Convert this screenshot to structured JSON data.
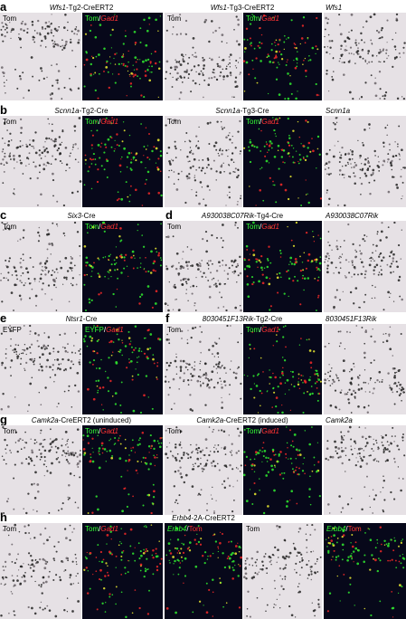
{
  "rows": [
    {
      "letters": [
        "a"
      ],
      "captions": [
        {
          "parts": [
            {
              "text": "Wfs1",
              "italic": true
            },
            {
              "text": "-Tg2-CreERT2"
            }
          ]
        },
        {
          "parts": [
            {
              "text": "Wfs1",
              "italic": true
            },
            {
              "text": "-Tg3-CreERT2"
            }
          ]
        },
        {
          "parts": [
            {
              "text": "Wfs1",
              "italic": true
            }
          ]
        }
      ],
      "panels": [
        {
          "kind": "ish",
          "label": [
            {
              "text": "Tom",
              "color": "#000"
            }
          ]
        },
        {
          "kind": "fluor",
          "label": [
            {
              "text": "Tom",
              "color": "#3f3"
            },
            {
              "text": "/",
              "color": "#fff"
            },
            {
              "text": "Gad1",
              "color": "#f33",
              "italic": true
            }
          ]
        },
        {
          "kind": "ish",
          "label": [
            {
              "text": "Tom",
              "color": "#000"
            }
          ]
        },
        {
          "kind": "fluor",
          "label": [
            {
              "text": "Tom",
              "color": "#3f3"
            },
            {
              "text": "/",
              "color": "#fff"
            },
            {
              "text": "Gad1",
              "color": "#f33",
              "italic": true
            }
          ]
        },
        {
          "kind": "ish",
          "label": []
        }
      ]
    },
    {
      "letters": [
        "b"
      ],
      "captions": [
        {
          "parts": [
            {
              "text": "Scnn1a",
              "italic": true
            },
            {
              "text": "-Tg2-Cre"
            }
          ]
        },
        {
          "parts": [
            {
              "text": "Scnn1a",
              "italic": true
            },
            {
              "text": "-Tg3-Cre"
            }
          ]
        },
        {
          "parts": [
            {
              "text": "Scnn1a",
              "italic": true
            }
          ]
        }
      ],
      "panels": [
        {
          "kind": "ish",
          "label": [
            {
              "text": "Tom",
              "color": "#000"
            }
          ]
        },
        {
          "kind": "fluor",
          "label": [
            {
              "text": "Tom",
              "color": "#3f3"
            },
            {
              "text": "/",
              "color": "#fff"
            },
            {
              "text": "Gad1",
              "color": "#f33",
              "italic": true
            }
          ]
        },
        {
          "kind": "ish",
          "label": [
            {
              "text": "Tom",
              "color": "#000"
            }
          ]
        },
        {
          "kind": "fluor",
          "label": [
            {
              "text": "Tom",
              "color": "#3f3"
            },
            {
              "text": "/",
              "color": "#fff"
            },
            {
              "text": "Gad1",
              "color": "#f33",
              "italic": true
            }
          ]
        },
        {
          "kind": "ish",
          "label": []
        }
      ]
    },
    {
      "letters": [
        "c",
        "d"
      ],
      "captions": [
        {
          "parts": [
            {
              "text": "Six3",
              "italic": true
            },
            {
              "text": "-Cre"
            }
          ]
        },
        {
          "parts": [
            {
              "text": "A930038C07Rik",
              "italic": true
            },
            {
              "text": "-Tg4-Cre"
            }
          ]
        },
        {
          "parts": [
            {
              "text": "A930038C07Rik",
              "italic": true
            }
          ]
        }
      ],
      "panels": [
        {
          "kind": "ish",
          "label": [
            {
              "text": "Tom",
              "color": "#000"
            }
          ]
        },
        {
          "kind": "fluor",
          "label": [
            {
              "text": "Tom",
              "color": "#3f3"
            },
            {
              "text": "/",
              "color": "#fff"
            },
            {
              "text": "Gad1",
              "color": "#f33",
              "italic": true
            }
          ]
        },
        {
          "kind": "ish",
          "label": [
            {
              "text": "Tom",
              "color": "#000"
            }
          ]
        },
        {
          "kind": "fluor",
          "label": [
            {
              "text": "Tom",
              "color": "#3f3"
            },
            {
              "text": "/",
              "color": "#fff"
            },
            {
              "text": "Gad1",
              "color": "#f33",
              "italic": true
            }
          ]
        },
        {
          "kind": "ish",
          "label": []
        }
      ]
    },
    {
      "letters": [
        "e",
        "f"
      ],
      "captions": [
        {
          "parts": [
            {
              "text": "Ntsr1",
              "italic": true
            },
            {
              "text": "-Cre"
            }
          ]
        },
        {
          "parts": [
            {
              "text": "8030451F13Rik",
              "italic": true
            },
            {
              "text": "-Tg2-Cre"
            }
          ]
        },
        {
          "parts": [
            {
              "text": "8030451F13Rik",
              "italic": true
            }
          ]
        }
      ],
      "panels": [
        {
          "kind": "ish",
          "label": [
            {
              "text": "EYFP",
              "color": "#000"
            }
          ]
        },
        {
          "kind": "fluor",
          "label": [
            {
              "text": "EYFP",
              "color": "#3f3"
            },
            {
              "text": "/",
              "color": "#fff"
            },
            {
              "text": "Gad1",
              "color": "#f33",
              "italic": true
            }
          ]
        },
        {
          "kind": "ish",
          "label": [
            {
              "text": "Tom",
              "color": "#000"
            }
          ]
        },
        {
          "kind": "fluor",
          "label": [
            {
              "text": "Tom",
              "color": "#3f3"
            },
            {
              "text": "/",
              "color": "#fff"
            },
            {
              "text": "Gad1",
              "color": "#f33",
              "italic": true
            }
          ]
        },
        {
          "kind": "ish",
          "label": []
        }
      ]
    },
    {
      "letters": [
        "g"
      ],
      "captions": [
        {
          "parts": [
            {
              "text": "Camk2a",
              "italic": true
            },
            {
              "text": "-CreERT2 (uninduced)"
            }
          ]
        },
        {
          "parts": [
            {
              "text": "Camk2a",
              "italic": true
            },
            {
              "text": "-CreERT2 (induced)"
            }
          ]
        },
        {
          "parts": [
            {
              "text": "Camk2a",
              "italic": true
            }
          ]
        }
      ],
      "panels": [
        {
          "kind": "ish",
          "label": [
            {
              "text": "Tom",
              "color": "#000"
            }
          ]
        },
        {
          "kind": "fluor",
          "label": [
            {
              "text": "Tom",
              "color": "#3f3"
            },
            {
              "text": "/",
              "color": "#fff"
            },
            {
              "text": "Gad1",
              "color": "#f33",
              "italic": true
            }
          ]
        },
        {
          "kind": "ish",
          "label": [
            {
              "text": "Tom",
              "color": "#000"
            }
          ]
        },
        {
          "kind": "fluor",
          "label": [
            {
              "text": "Tom",
              "color": "#3f3"
            },
            {
              "text": "/",
              "color": "#fff"
            },
            {
              "text": "Gad1",
              "color": "#f33",
              "italic": true
            }
          ]
        },
        {
          "kind": "ish",
          "label": []
        }
      ]
    },
    {
      "letters": [
        "h"
      ],
      "captions": [
        {
          "parts": [
            {
              "text": "Erbb4",
              "italic": true
            },
            {
              "text": "-2A-CreERT2"
            }
          ]
        }
      ],
      "panels": [
        {
          "kind": "ish",
          "label": [
            {
              "text": "Tom",
              "color": "#000"
            }
          ]
        },
        {
          "kind": "fluor",
          "label": [
            {
              "text": "Tom",
              "color": "#3f3"
            },
            {
              "text": "/",
              "color": "#fff"
            },
            {
              "text": "Gad1",
              "color": "#f33",
              "italic": true
            }
          ]
        },
        {
          "kind": "fluor",
          "label": [
            {
              "text": "Erbb4",
              "color": "#3f3",
              "italic": true
            },
            {
              "text": "/",
              "color": "#fff"
            },
            {
              "text": "Tom",
              "color": "#f33"
            }
          ]
        },
        {
          "kind": "ish",
          "label": [
            {
              "text": "Tom",
              "color": "#000"
            }
          ]
        },
        {
          "kind": "fluor",
          "label": [
            {
              "text": "Erbb4",
              "color": "#3f3",
              "italic": true
            },
            {
              "text": "/",
              "color": "#fff"
            },
            {
              "text": "Tom",
              "color": "#f33"
            }
          ]
        }
      ]
    }
  ]
}
